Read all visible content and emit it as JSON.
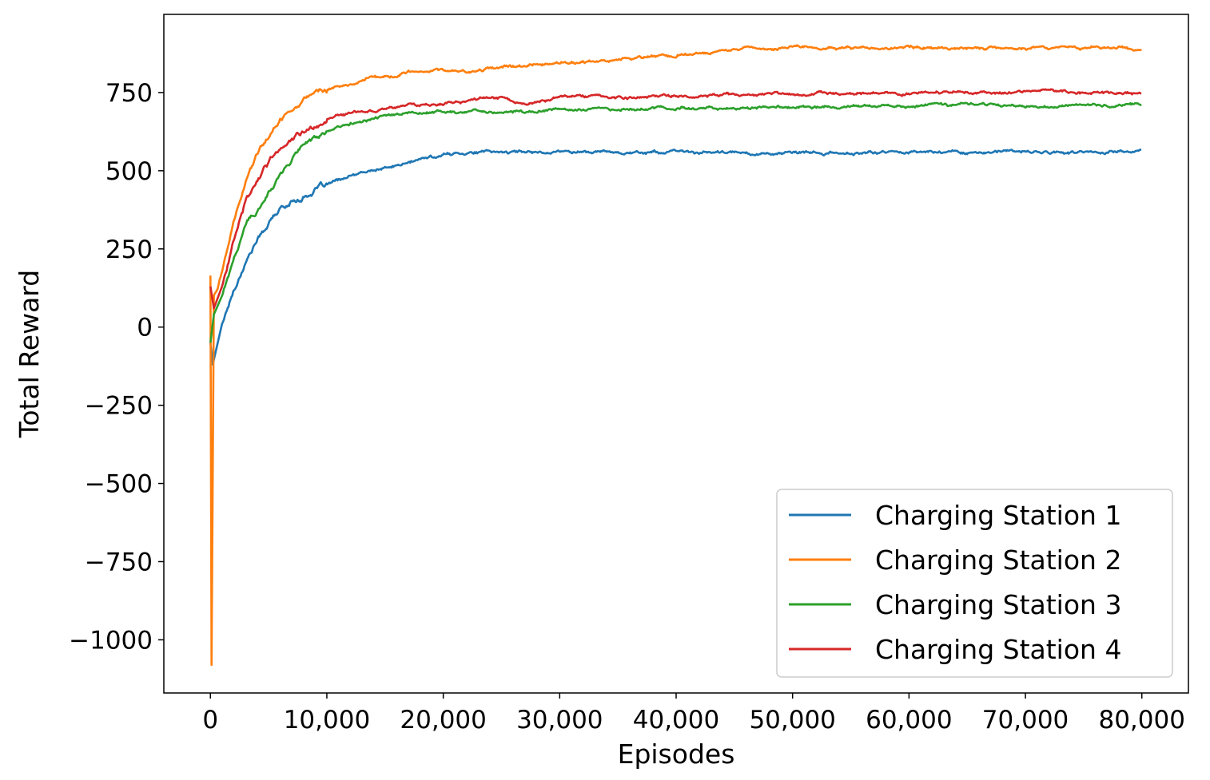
{
  "chart_data": {
    "type": "line",
    "title": "",
    "xlabel": "Episodes",
    "ylabel": "Total Reward",
    "xlim": [
      -4000,
      84000
    ],
    "ylim": [
      -1170,
      1000
    ],
    "xticks": [
      0,
      10000,
      20000,
      30000,
      40000,
      50000,
      60000,
      70000,
      80000
    ],
    "xtick_labels": [
      "0",
      "10,000",
      "20,000",
      "30,000",
      "40,000",
      "50,000",
      "60,000",
      "70,000",
      "80,000"
    ],
    "yticks": [
      -1000,
      -750,
      -500,
      -250,
      0,
      250,
      500,
      750
    ],
    "ytick_labels": [
      "−1000",
      "−750",
      "−500",
      "−250",
      "0",
      "250",
      "500",
      "750"
    ],
    "grid": false,
    "legend_position": "lower-right",
    "series": [
      {
        "name": "Charging Station 1",
        "color": "#1f77b4",
        "x": [
          0,
          200,
          1000,
          2000,
          3000,
          4000,
          5000,
          6000,
          7000,
          8000,
          9000,
          10000,
          12000,
          14000,
          16000,
          18000,
          20000,
          22000,
          25000,
          30000,
          35000,
          40000,
          45000,
          50000,
          55000,
          60000,
          65000,
          70000,
          75000,
          80000
        ],
        "y": [
          -50,
          -120,
          10,
          120,
          210,
          280,
          330,
          375,
          400,
          420,
          440,
          455,
          480,
          500,
          515,
          535,
          550,
          560,
          560,
          562,
          560,
          560,
          557,
          555,
          555,
          562,
          560,
          560,
          558,
          565
        ]
      },
      {
        "name": "Charging Station 2",
        "color": "#ff7f0e",
        "x": [
          0,
          100,
          300,
          1000,
          2000,
          3000,
          4000,
          5000,
          6000,
          7000,
          8000,
          9000,
          10000,
          12000,
          14000,
          16000,
          18000,
          20000,
          22000,
          24000,
          26000,
          30000,
          35000,
          40000,
          45000,
          50000,
          55000,
          60000,
          65000,
          70000,
          75000,
          80000
        ],
        "y": [
          165,
          -1080,
          100,
          180,
          330,
          460,
          550,
          610,
          660,
          705,
          735,
          750,
          760,
          775,
          795,
          805,
          815,
          820,
          815,
          830,
          835,
          840,
          855,
          870,
          890,
          895,
          890,
          895,
          893,
          895,
          893,
          890
        ]
      },
      {
        "name": "Charging Station 3",
        "color": "#2ca02c",
        "x": [
          0,
          300,
          1000,
          2000,
          3000,
          4000,
          5000,
          6000,
          7000,
          8000,
          9000,
          10000,
          12000,
          14000,
          16000,
          18000,
          20000,
          25000,
          30000,
          35000,
          40000,
          45000,
          50000,
          55000,
          60000,
          65000,
          70000,
          75000,
          80000
        ],
        "y": [
          -50,
          40,
          100,
          220,
          320,
          380,
          430,
          480,
          540,
          590,
          610,
          625,
          650,
          665,
          680,
          685,
          688,
          690,
          695,
          698,
          700,
          700,
          703,
          705,
          708,
          708,
          710,
          710,
          712
        ]
      },
      {
        "name": "Charging Station 4",
        "color": "#d62728",
        "x": [
          0,
          300,
          1000,
          2000,
          3000,
          4000,
          5000,
          6000,
          7000,
          8000,
          9000,
          10000,
          12000,
          14000,
          16000,
          18000,
          20000,
          22000,
          25000,
          27000,
          30000,
          35000,
          40000,
          45000,
          50000,
          55000,
          60000,
          65000,
          70000,
          75000,
          80000
        ],
        "y": [
          130,
          60,
          130,
          280,
          400,
          470,
          520,
          570,
          600,
          620,
          650,
          665,
          685,
          695,
          705,
          710,
          715,
          720,
          730,
          715,
          730,
          735,
          740,
          742,
          745,
          748,
          750,
          750,
          752,
          750,
          750
        ]
      }
    ]
  }
}
